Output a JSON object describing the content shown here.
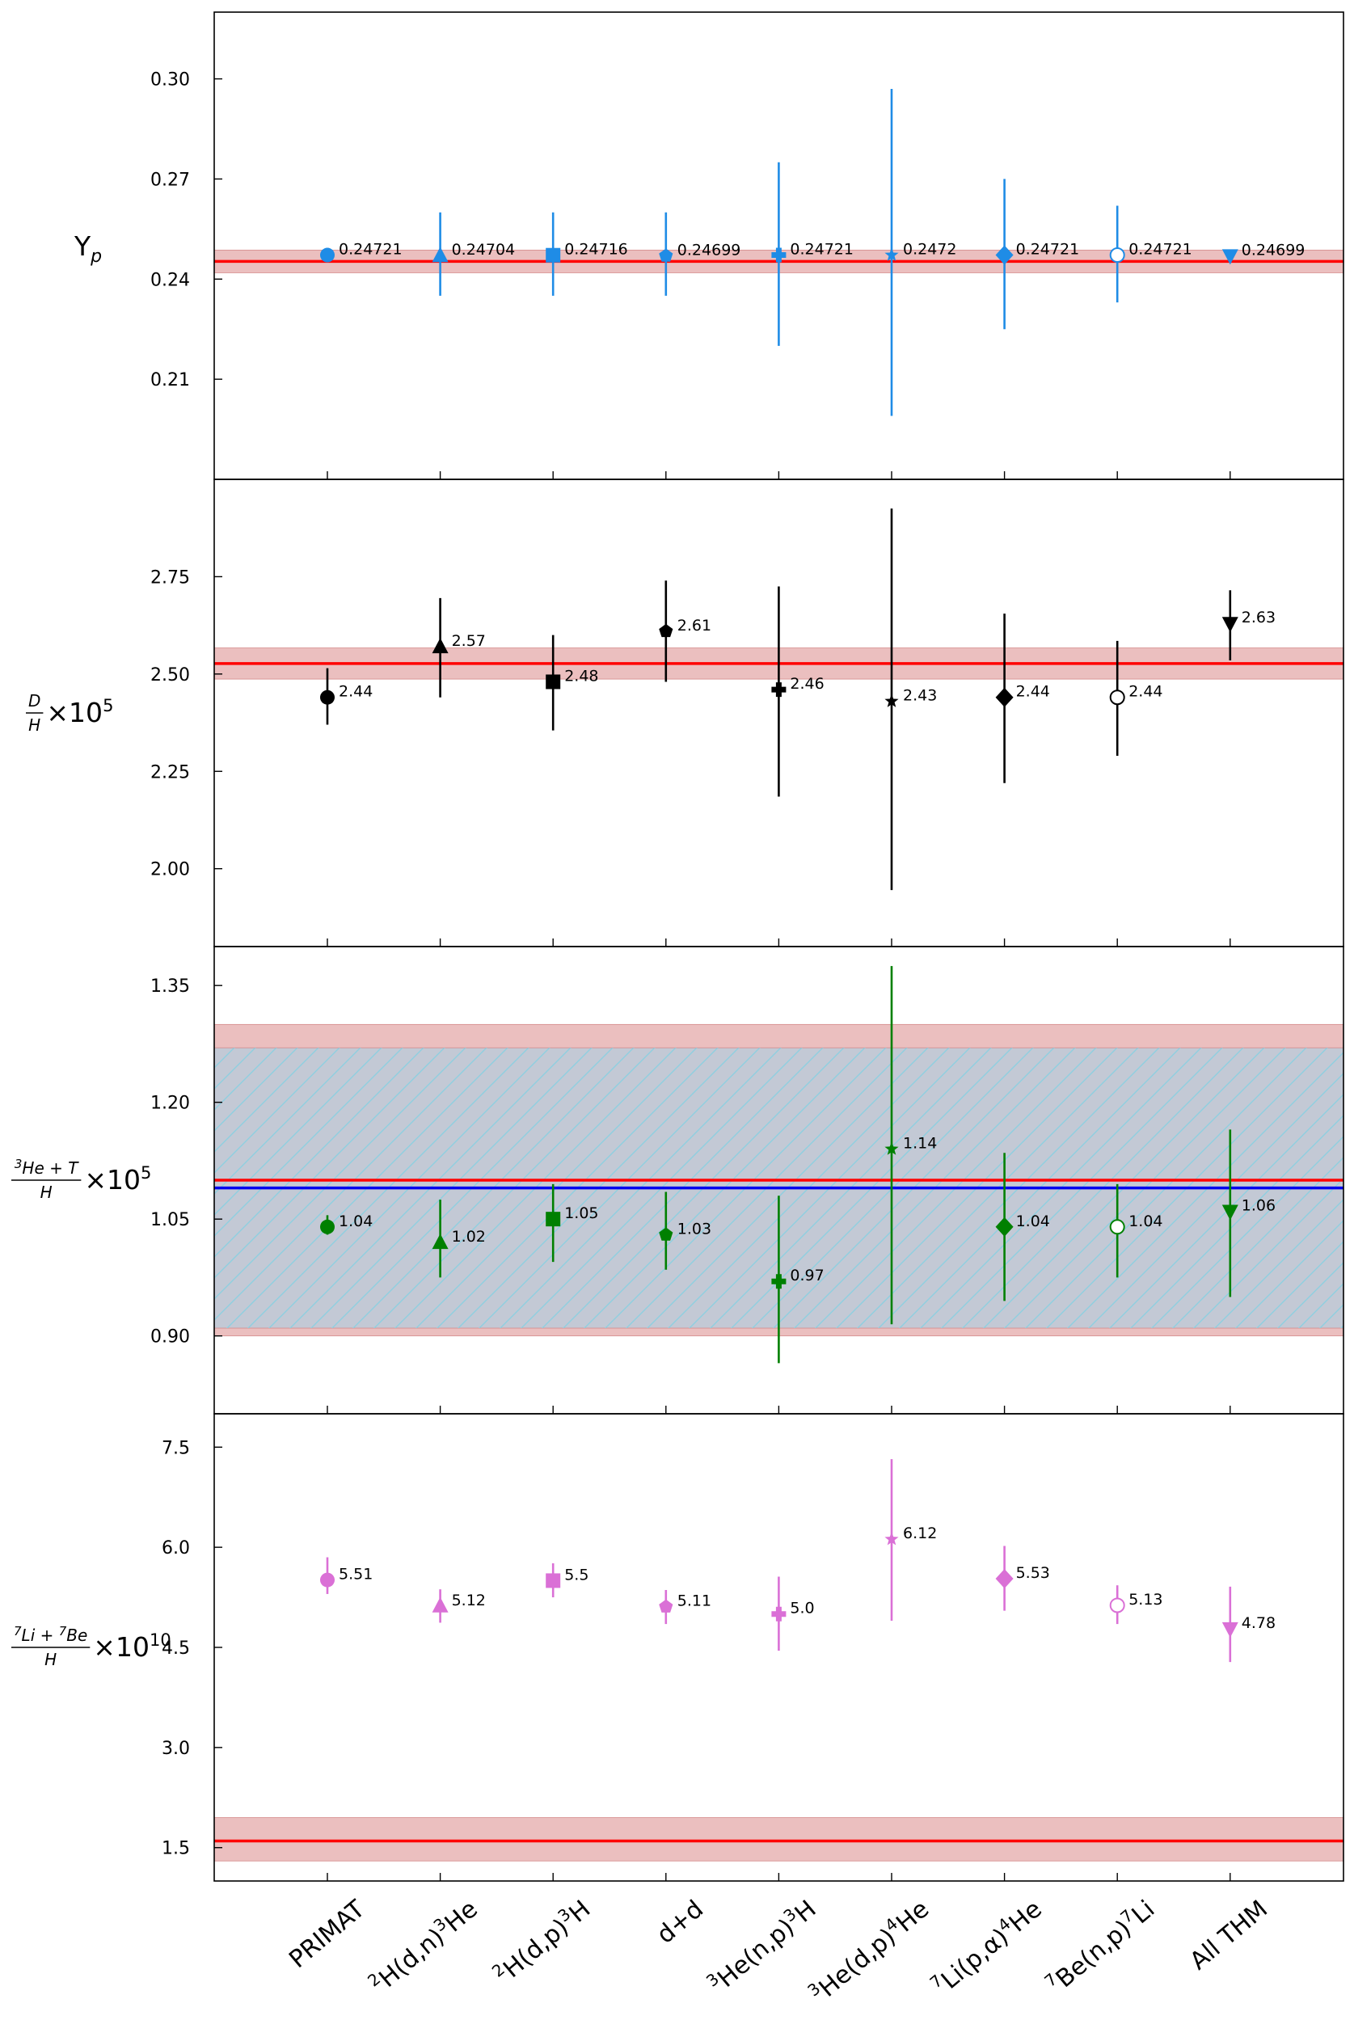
{
  "categories": [
    {
      "pre": "",
      "sup": "",
      "mid": "PRIMAT",
      "sup2": "",
      "post": ""
    },
    {
      "pre": "",
      "sup": "2",
      "mid": "H(d,n)",
      "sup2": "3",
      "post": "He"
    },
    {
      "pre": "",
      "sup": "2",
      "mid": "H(d,p)",
      "sup2": "3",
      "post": "H"
    },
    {
      "pre": "",
      "sup": "",
      "mid": "d+d",
      "sup2": "",
      "post": ""
    },
    {
      "pre": "",
      "sup": "3",
      "mid": "He(n,p)",
      "sup2": "3",
      "post": "H"
    },
    {
      "pre": "",
      "sup": "3",
      "mid": "He(d,p)",
      "sup2": "4",
      "post": "He"
    },
    {
      "pre": "",
      "sup": "7",
      "mid": "Li(p,α)",
      "sup2": "4",
      "post": "He"
    },
    {
      "pre": "",
      "sup": "7",
      "mid": "Be(n,p)",
      "sup2": "7",
      "post": "Li"
    },
    {
      "pre": "",
      "sup": "",
      "mid": "All THM",
      "sup2": "",
      "post": ""
    }
  ],
  "markers": [
    "circle",
    "triangle-up",
    "square",
    "pentagon",
    "plus",
    "star",
    "diamond",
    "circle-open",
    "triangle-down"
  ],
  "chart_data": [
    {
      "type": "scatter",
      "ylabel": {
        "main": "Y",
        "sub": "p"
      },
      "ylim": [
        0.18,
        0.32
      ],
      "yticks": [
        "0.21",
        "0.24",
        "0.27",
        "0.30"
      ],
      "color": "#1f8ce6",
      "values": [
        0.24721,
        0.24704,
        0.24716,
        0.24699,
        0.24721,
        0.2472,
        0.24721,
        0.24721,
        0.24699
      ],
      "labels": [
        "0.24721",
        "0.24704",
        "0.24716",
        "0.24699",
        "0.24721",
        "0.2472",
        "0.24721",
        "0.24721",
        "0.24699"
      ],
      "err_low": [
        0.2472,
        0.235,
        0.235,
        0.235,
        0.22,
        0.199,
        0.225,
        0.233,
        0.2469
      ],
      "err_high": [
        0.2472,
        0.26,
        0.26,
        0.26,
        0.275,
        0.297,
        0.27,
        0.262,
        0.2472
      ],
      "obs_lines": [
        {
          "value": 0.2453,
          "color": "#ff0000"
        }
      ],
      "obs_bands": [
        {
          "low": 0.2419,
          "high": 0.2487,
          "fill": "#e8b4b4",
          "hatch": false
        }
      ],
      "grid": false
    },
    {
      "type": "scatter",
      "ylabel": {
        "num": "D",
        "den": "H",
        "times": "×10",
        "exp": "5"
      },
      "ylim": [
        1.8,
        3.0
      ],
      "yticks": [
        "2.00",
        "2.25",
        "2.50",
        "2.75"
      ],
      "color": "#000000",
      "values": [
        2.44,
        2.57,
        2.48,
        2.61,
        2.46,
        2.43,
        2.44,
        2.44,
        2.63
      ],
      "labels": [
        "2.44",
        "2.57",
        "2.48",
        "2.61",
        "2.46",
        "2.43",
        "2.44",
        "2.44",
        "2.63"
      ],
      "err_low": [
        2.37,
        2.44,
        2.355,
        2.48,
        2.185,
        1.945,
        2.22,
        2.29,
        2.535
      ],
      "err_high": [
        2.515,
        2.695,
        2.6,
        2.74,
        2.725,
        2.925,
        2.655,
        2.585,
        2.715
      ],
      "obs_lines": [
        {
          "value": 2.527,
          "color": "#ff0000"
        }
      ],
      "obs_bands": [
        {
          "low": 2.487,
          "high": 2.567,
          "fill": "#e8b4b4",
          "hatch": false
        }
      ],
      "grid": false
    },
    {
      "type": "scatter",
      "ylabel": {
        "num_sup": "3",
        "num": "He + T",
        "den": "H",
        "times": "×10",
        "exp": "5"
      },
      "ylim": [
        0.8,
        1.4
      ],
      "yticks": [
        "0.90",
        "1.05",
        "1.20",
        "1.35"
      ],
      "color": "#008000",
      "values": [
        1.04,
        1.02,
        1.05,
        1.03,
        0.97,
        1.14,
        1.04,
        1.04,
        1.06
      ],
      "labels": [
        "1.04",
        "1.02",
        "1.05",
        "1.03",
        "0.97",
        "1.14",
        "1.04",
        "1.04",
        "1.06"
      ],
      "err_low": [
        1.03,
        0.975,
        0.995,
        0.985,
        0.865,
        0.915,
        0.945,
        0.975,
        0.95
      ],
      "err_high": [
        1.055,
        1.075,
        1.095,
        1.085,
        1.08,
        1.375,
        1.135,
        1.095,
        1.165
      ],
      "obs_lines": [
        {
          "value": 1.1,
          "color": "#ff0000"
        },
        {
          "value": 1.09,
          "color": "#0000ee"
        }
      ],
      "obs_bands": [
        {
          "low": 0.9,
          "high": 1.3,
          "fill": "#e8b4b4",
          "hatch": false
        },
        {
          "low": 0.91,
          "high": 1.27,
          "fill": "#bccad8",
          "hatch": true,
          "hatch_color": "#8ecfe0"
        }
      ],
      "grid": false
    },
    {
      "type": "scatter",
      "ylabel": {
        "num_sup": "7",
        "num": "Li + ",
        "num_sup2": "7",
        "num2": "Be",
        "den": "H",
        "times": "×10",
        "exp": "10"
      },
      "ylim": [
        1.0,
        8.0
      ],
      "yticks": [
        "1.5",
        "3.0",
        "4.5",
        "6.0",
        "7.5"
      ],
      "color": "#da70d6",
      "values": [
        5.51,
        5.12,
        5.5,
        5.11,
        5.0,
        6.12,
        5.53,
        5.13,
        4.78
      ],
      "labels": [
        "5.51",
        "5.12",
        "5.5",
        "5.11",
        "5.0",
        "6.12",
        "5.53",
        "5.13",
        "4.78"
      ],
      "err_low": [
        5.3,
        4.87,
        5.25,
        4.85,
        4.45,
        4.9,
        5.05,
        4.85,
        4.28
      ],
      "err_high": [
        5.85,
        5.37,
        5.76,
        5.36,
        5.56,
        7.32,
        6.02,
        5.43,
        5.41
      ],
      "obs_lines": [
        {
          "value": 1.6,
          "color": "#ff0000"
        }
      ],
      "obs_bands": [
        {
          "low": 1.3,
          "high": 1.95,
          "fill": "#e8b4b4",
          "hatch": false
        }
      ],
      "grid": false
    }
  ]
}
